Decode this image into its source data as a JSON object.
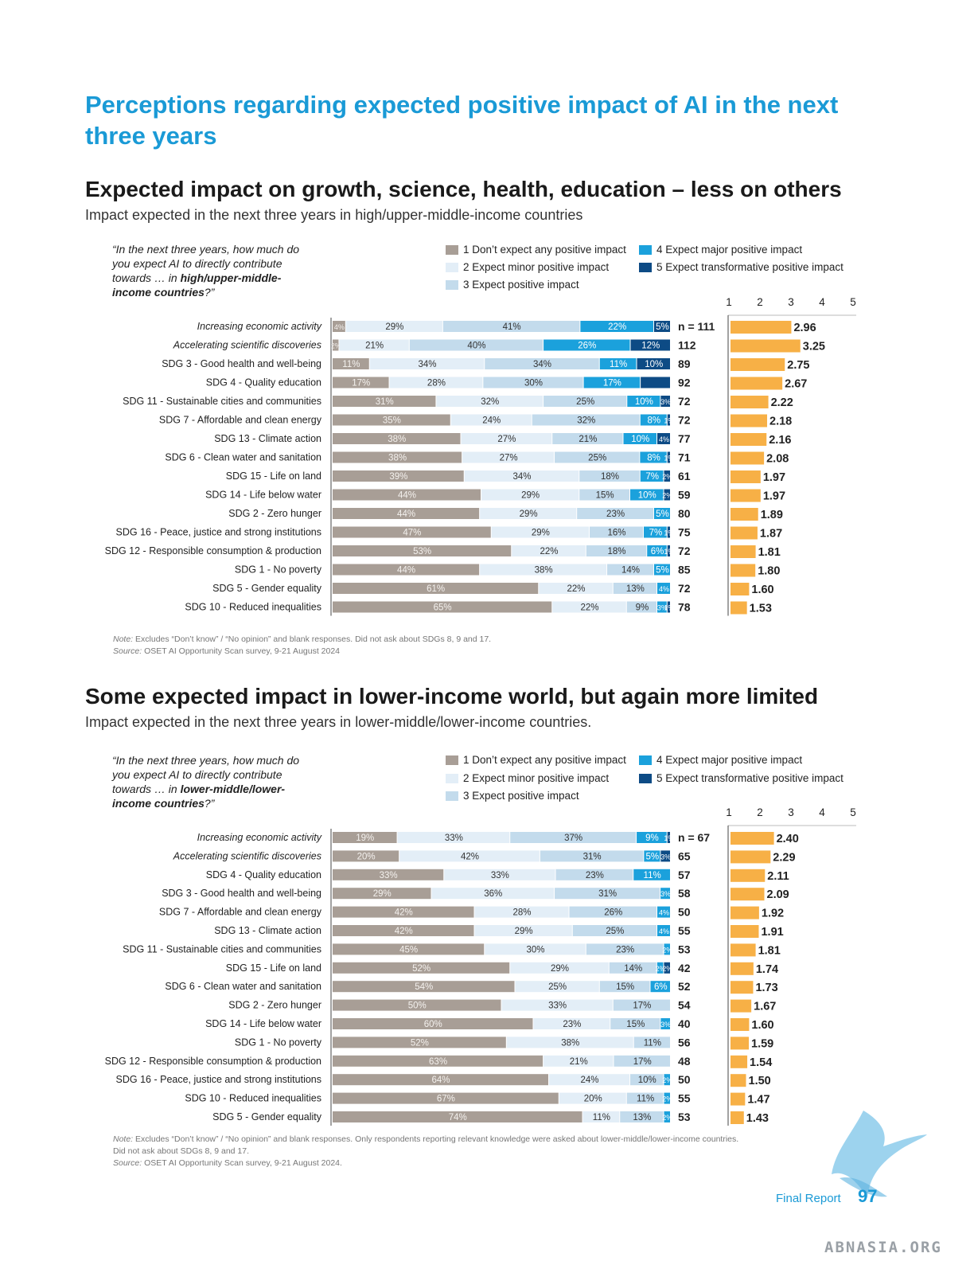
{
  "page_title": "Perceptions regarding expected positive impact of AI in the next three years",
  "legend": {
    "items": [
      {
        "label": "1 Don’t expect any positive impact",
        "color": "#a89e96"
      },
      {
        "label": "2 Expect minor positive impact",
        "color": "#e3eef7"
      },
      {
        "label": "3 Expect positive impact",
        "color": "#c3dbec"
      },
      {
        "label": "4 Expect major positive impact",
        "color": "#1ba1dc"
      },
      {
        "label": "5 Expect transformative positive impact",
        "color": "#0d4b85"
      }
    ]
  },
  "section1": {
    "heading": "Expected impact on growth, science, health, education – less on others",
    "subtitle": "Impact expected in the next three years in high/upper-middle-income countries",
    "question_pre": "“In the next three years, how much do you expect AI to directly contribute towards … in ",
    "question_bold": "high/upper-middle-income countries",
    "question_post": "?”",
    "note_label": "Note:",
    "note_text": " Excludes “Don’t know” / “No opinion” and blank responses. Did not ask about SDGs 8, 9 and 17.",
    "source_label": "Source:",
    "source_text": " OSET AI Opportunity Scan survey, 9-21 August 2024"
  },
  "section2": {
    "heading": "Some expected impact in lower-income world, but again more limited",
    "subtitle": "Impact expected in the next three years in lower-middle/lower-income countries.",
    "question_pre": "“In the next three years, how much do you expect AI to directly contribute towards … in ",
    "question_bold": "lower-middle/lower-income countries",
    "question_post": "?”",
    "note_label": "Note:",
    "note_text": " Excludes “Don’t know” / “No opinion” and blank responses. Only respondents reporting relevant knowledge were asked about lower-middle/lower-income countries.",
    "note_text2": "Did not ask about SDGs 8, 9 and 17.",
    "source_label": "Source:",
    "source_text": " OSET AI Opportunity Scan survey, 9-21 August 2024."
  },
  "footer": {
    "label": "Final Report",
    "page_number": "97",
    "watermark": "ABNASIA.ORG"
  },
  "chart_data": [
    {
      "type": "bar",
      "stacked": true,
      "orientation": "horizontal",
      "title": "",
      "categories": [
        "Increasing economic activity",
        "Accelerating scientific discoveries",
        "SDG 3 - Good health and well-being",
        "SDG 4 - Quality education",
        "SDG 11 - Sustainable cities and communities",
        "SDG 7 - Affordable and clean energy",
        "SDG 13 - Climate action",
        "SDG 6 - Clean water and sanitation",
        "SDG 15 - Life on land",
        "SDG 14 - Life below water",
        "SDG 2 - Zero hunger",
        "SDG 16 - Peace, justice and strong institutions",
        "SDG 12 - Responsible consumption & production",
        "SDG 1 - No poverty",
        "SDG 5 - Gender equality",
        "SDG 10 - Reduced inequalities"
      ],
      "italic_categories": [
        "Increasing economic activity",
        "Accelerating scientific discoveries"
      ],
      "series": [
        {
          "name": "1 Don’t expect any positive impact",
          "values": [
            4,
            2,
            11,
            17,
            31,
            35,
            38,
            38,
            39,
            44,
            44,
            47,
            53,
            44,
            61,
            65
          ]
        },
        {
          "name": "2 Expect minor positive impact",
          "values": [
            29,
            21,
            34,
            28,
            32,
            24,
            27,
            27,
            34,
            29,
            29,
            29,
            22,
            38,
            22,
            22
          ]
        },
        {
          "name": "3 Expect positive impact",
          "values": [
            41,
            40,
            34,
            30,
            25,
            32,
            21,
            25,
            18,
            15,
            23,
            16,
            18,
            14,
            13,
            9
          ]
        },
        {
          "name": "4 Expect major positive impact",
          "values": [
            22,
            26,
            11,
            17,
            10,
            8,
            10,
            8,
            7,
            10,
            5,
            7,
            6,
            5,
            4,
            3
          ]
        },
        {
          "name": "5 Expect transformative positive impact",
          "values": [
            5,
            12,
            10,
            9,
            3,
            1,
            4,
            1,
            2,
            2,
            0,
            1,
            1,
            0,
            0,
            1
          ]
        }
      ],
      "value_labels": [
        [
          "4%",
          "29%",
          "41%",
          "22%",
          "5%"
        ],
        [
          "2%",
          "21%",
          "40%",
          "26%",
          "12%"
        ],
        [
          "11%",
          "34%",
          "34%",
          "11%",
          "10%"
        ],
        [
          "17%",
          "28%",
          "30%",
          "17%",
          ""
        ],
        [
          "31%",
          "32%",
          "25%",
          "10%",
          "3%"
        ],
        [
          "35%",
          "24%",
          "32%",
          "8%",
          "1%"
        ],
        [
          "38%",
          "27%",
          "21%",
          "10%",
          "4%"
        ],
        [
          "38%",
          "27%",
          "25%",
          "8%",
          "1%"
        ],
        [
          "39%",
          "34%",
          "18%",
          "7%",
          "2%"
        ],
        [
          "44%",
          "29%",
          "15%",
          "10%",
          "2%"
        ],
        [
          "44%",
          "29%",
          "23%",
          "5%",
          ""
        ],
        [
          "47%",
          "29%",
          "16%",
          "7%",
          "1%"
        ],
        [
          "53%",
          "22%",
          "18%",
          "6%",
          "1%"
        ],
        [
          "44%",
          "38%",
          "14%",
          "5%",
          ""
        ],
        [
          "61%",
          "22%",
          "13%",
          "4%",
          ""
        ],
        [
          "65%",
          "22%",
          "9%",
          "3%",
          "1%"
        ]
      ],
      "n_labels": [
        "n = 111",
        "112",
        "89",
        "92",
        "72",
        "72",
        "77",
        "71",
        "61",
        "59",
        "80",
        "75",
        "72",
        "85",
        "72",
        "78"
      ],
      "mean_scores": [
        2.96,
        3.25,
        2.75,
        2.67,
        2.22,
        2.18,
        2.16,
        2.08,
        1.97,
        1.97,
        1.89,
        1.87,
        1.81,
        1.8,
        1.6,
        1.53
      ],
      "mean_labels": [
        "2.96",
        "3.25",
        "2.75",
        "2.67",
        "2.22",
        "2.18",
        "2.16",
        "2.08",
        "1.97",
        "1.97",
        "1.89",
        "1.87",
        "1.81",
        "1.80",
        "1.60",
        "1.53"
      ],
      "mean_axis_ticks": [
        "1",
        "2",
        "3",
        "4",
        "5"
      ],
      "mean_xlim": [
        1,
        5
      ],
      "mean_bar_color": "#f7b046"
    },
    {
      "type": "bar",
      "stacked": true,
      "orientation": "horizontal",
      "title": "",
      "categories": [
        "Increasing economic activity",
        "Accelerating scientific discoveries",
        "SDG 4 - Quality education",
        "SDG 3 - Good health and well-being",
        "SDG 7 - Affordable and clean energy",
        "SDG 13 - Climate action",
        "SDG 11 - Sustainable cities and communities",
        "SDG 15 - Life on land",
        "SDG 6 - Clean water and sanitation",
        "SDG 2 - Zero hunger",
        "SDG 14 - Life below water",
        "SDG 1 - No poverty",
        "SDG 12 - Responsible consumption & production",
        "SDG 16 - Peace, justice and strong institutions",
        "SDG 10 - Reduced inequalities",
        "SDG 5 - Gender equality"
      ],
      "italic_categories": [
        "Increasing economic activity",
        "Accelerating scientific discoveries"
      ],
      "series": [
        {
          "name": "1 Don’t expect any positive impact",
          "values": [
            19,
            20,
            33,
            29,
            42,
            42,
            45,
            52,
            54,
            50,
            60,
            52,
            63,
            64,
            67,
            74
          ]
        },
        {
          "name": "2 Expect minor positive impact",
          "values": [
            33,
            42,
            33,
            36,
            28,
            29,
            30,
            29,
            25,
            33,
            23,
            38,
            21,
            24,
            20,
            11
          ]
        },
        {
          "name": "3 Expect positive impact",
          "values": [
            37,
            31,
            23,
            31,
            26,
            25,
            23,
            14,
            15,
            17,
            15,
            11,
            17,
            10,
            11,
            13
          ]
        },
        {
          "name": "4 Expect major positive impact",
          "values": [
            9,
            5,
            11,
            3,
            4,
            4,
            2,
            2,
            6,
            0,
            3,
            0,
            0,
            2,
            2,
            2
          ]
        },
        {
          "name": "5 Expect transformative positive impact",
          "values": [
            1,
            3,
            0,
            0,
            0,
            0,
            0,
            2,
            0,
            0,
            0,
            0,
            0,
            0,
            0,
            0
          ]
        }
      ],
      "value_labels": [
        [
          "19%",
          "33%",
          "37%",
          "9%",
          "1%"
        ],
        [
          "20%",
          "42%",
          "31%",
          "5%",
          "3%"
        ],
        [
          "33%",
          "33%",
          "23%",
          "11%",
          ""
        ],
        [
          "29%",
          "36%",
          "31%",
          "3%",
          ""
        ],
        [
          "42%",
          "28%",
          "26%",
          "4%",
          ""
        ],
        [
          "42%",
          "29%",
          "25%",
          "4%",
          ""
        ],
        [
          "45%",
          "30%",
          "23%",
          "2%",
          ""
        ],
        [
          "52%",
          "29%",
          "14%",
          "2%",
          "2%"
        ],
        [
          "54%",
          "25%",
          "15%",
          "6%",
          ""
        ],
        [
          "50%",
          "33%",
          "17%",
          "",
          ""
        ],
        [
          "60%",
          "23%",
          "15%",
          "3%",
          ""
        ],
        [
          "52%",
          "38%",
          "11%",
          "",
          ""
        ],
        [
          "63%",
          "21%",
          "17%",
          "",
          ""
        ],
        [
          "64%",
          "24%",
          "10%",
          "2%",
          ""
        ],
        [
          "67%",
          "20%",
          "11%",
          "2%",
          ""
        ],
        [
          "74%",
          "11%",
          "13%",
          "2%",
          ""
        ]
      ],
      "n_labels": [
        "n = 67",
        "65",
        "57",
        "58",
        "50",
        "55",
        "53",
        "42",
        "52",
        "54",
        "40",
        "56",
        "48",
        "50",
        "55",
        "53"
      ],
      "mean_scores": [
        2.4,
        2.29,
        2.11,
        2.09,
        1.92,
        1.91,
        1.81,
        1.74,
        1.73,
        1.67,
        1.6,
        1.59,
        1.54,
        1.5,
        1.47,
        1.43
      ],
      "mean_labels": [
        "2.40",
        "2.29",
        "2.11",
        "2.09",
        "1.92",
        "1.91",
        "1.81",
        "1.74",
        "1.73",
        "1.67",
        "1.60",
        "1.59",
        "1.54",
        "1.50",
        "1.47",
        "1.43"
      ],
      "mean_axis_ticks": [
        "1",
        "2",
        "3",
        "4",
        "5"
      ],
      "mean_xlim": [
        1,
        5
      ],
      "mean_bar_color": "#f7b046"
    }
  ]
}
